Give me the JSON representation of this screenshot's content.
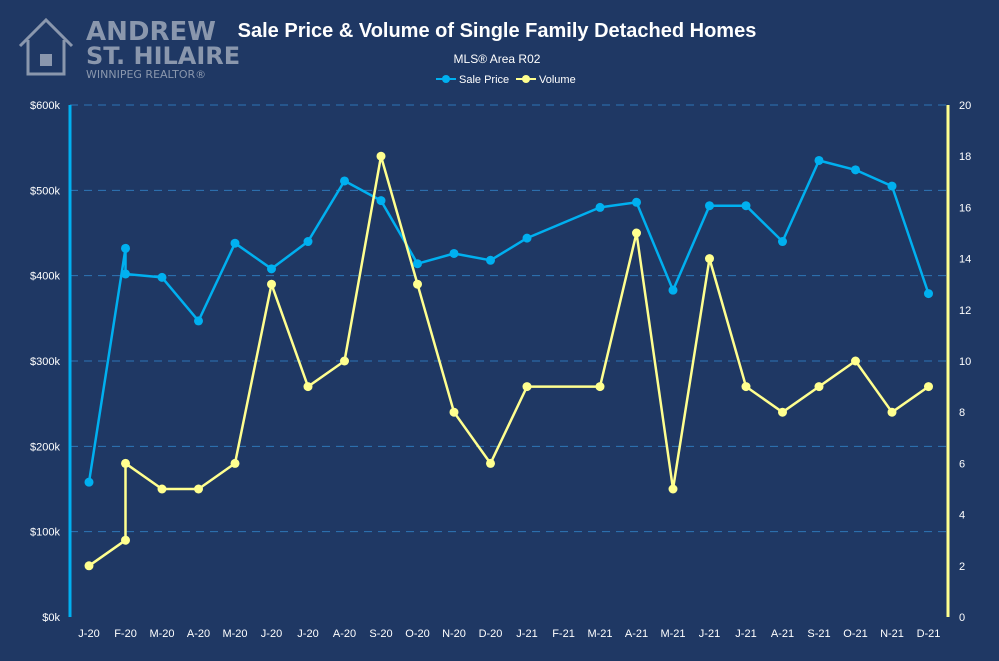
{
  "branding": {
    "line1": "ANDREW",
    "line2": "ST. HILAIRE",
    "line3": "WINNIPEG REALTOR®"
  },
  "colors": {
    "background": "#1f3864",
    "sale_price": "#00b0f0",
    "volume": "#ffff8f",
    "gridline": "#2e75b6",
    "text": "#ffffff",
    "logo": "#8a97ad"
  },
  "chart_data": {
    "type": "line",
    "title": "Sale Price & Volume of Single Family Detached Homes",
    "subtitle": "MLS® Area R02",
    "legend_position": "top-center",
    "grid": true,
    "categories": [
      "J-20",
      "F-20",
      "M-20",
      "A-20",
      "M-20",
      "J-20",
      "J-20",
      "A-20",
      "S-20",
      "O-20",
      "N-20",
      "D-20",
      "J-21",
      "F-21",
      "M-21",
      "A-21",
      "M-21",
      "J-21",
      "J-21",
      "A-21",
      "S-21",
      "O-21",
      "N-21",
      "D-21"
    ],
    "y_left": {
      "min": 0,
      "max": 600000,
      "ticks": [
        {
          "value": 0,
          "label": "$0k"
        },
        {
          "value": 100000,
          "label": "$100k"
        },
        {
          "value": 200000,
          "label": "$200k"
        },
        {
          "value": 300000,
          "label": "$300k"
        },
        {
          "value": 400000,
          "label": "$400k"
        },
        {
          "value": 500000,
          "label": "$500k"
        },
        {
          "value": 600000,
          "label": "$600k"
        }
      ]
    },
    "y_right": {
      "min": 0,
      "max": 20,
      "ticks": [
        {
          "value": 0,
          "label": "0"
        },
        {
          "value": 2,
          "label": "2"
        },
        {
          "value": 4,
          "label": "4"
        },
        {
          "value": 6,
          "label": "6"
        },
        {
          "value": 8,
          "label": "8"
        },
        {
          "value": 10,
          "label": "10"
        },
        {
          "value": 12,
          "label": "12"
        },
        {
          "value": 14,
          "label": "14"
        },
        {
          "value": 16,
          "label": "16"
        },
        {
          "value": 18,
          "label": "18"
        },
        {
          "value": 20,
          "label": "20"
        }
      ]
    },
    "series": [
      {
        "name": "Sale Price",
        "axis": "left",
        "points": [
          {
            "x": 0,
            "y": 158000
          },
          {
            "x": 1,
            "y": 432000
          },
          {
            "x": 1,
            "y": 402000
          },
          {
            "x": 2,
            "y": 398000
          },
          {
            "x": 3,
            "y": 347000
          },
          {
            "x": 4,
            "y": 438000
          },
          {
            "x": 5,
            "y": 408000
          },
          {
            "x": 6,
            "y": 440000
          },
          {
            "x": 7,
            "y": 511000
          },
          {
            "x": 8,
            "y": 488000
          },
          {
            "x": 9,
            "y": 414000
          },
          {
            "x": 10,
            "y": 426000
          },
          {
            "x": 11,
            "y": 418000
          },
          {
            "x": 12,
            "y": 444000
          },
          {
            "x": 14,
            "y": 480000
          },
          {
            "x": 15,
            "y": 486000
          },
          {
            "x": 16,
            "y": 383000
          },
          {
            "x": 17,
            "y": 482000
          },
          {
            "x": 18,
            "y": 482000
          },
          {
            "x": 19,
            "y": 440000
          },
          {
            "x": 20,
            "y": 535000
          },
          {
            "x": 21,
            "y": 524000
          },
          {
            "x": 22,
            "y": 505000
          },
          {
            "x": 23,
            "y": 379000
          }
        ]
      },
      {
        "name": "Volume",
        "axis": "right",
        "points": [
          {
            "x": 0,
            "y": 2
          },
          {
            "x": 1,
            "y": 3
          },
          {
            "x": 1,
            "y": 6
          },
          {
            "x": 2,
            "y": 5
          },
          {
            "x": 3,
            "y": 5
          },
          {
            "x": 4,
            "y": 6
          },
          {
            "x": 5,
            "y": 13
          },
          {
            "x": 6,
            "y": 9
          },
          {
            "x": 7,
            "y": 10
          },
          {
            "x": 8,
            "y": 18
          },
          {
            "x": 9,
            "y": 13
          },
          {
            "x": 10,
            "y": 8
          },
          {
            "x": 11,
            "y": 6
          },
          {
            "x": 12,
            "y": 9
          },
          {
            "x": 14,
            "y": 9
          },
          {
            "x": 15,
            "y": 15
          },
          {
            "x": 16,
            "y": 5
          },
          {
            "x": 17,
            "y": 14
          },
          {
            "x": 18,
            "y": 9
          },
          {
            "x": 19,
            "y": 8
          },
          {
            "x": 20,
            "y": 9
          },
          {
            "x": 21,
            "y": 10
          },
          {
            "x": 22,
            "y": 8
          },
          {
            "x": 23,
            "y": 9
          }
        ]
      }
    ]
  }
}
